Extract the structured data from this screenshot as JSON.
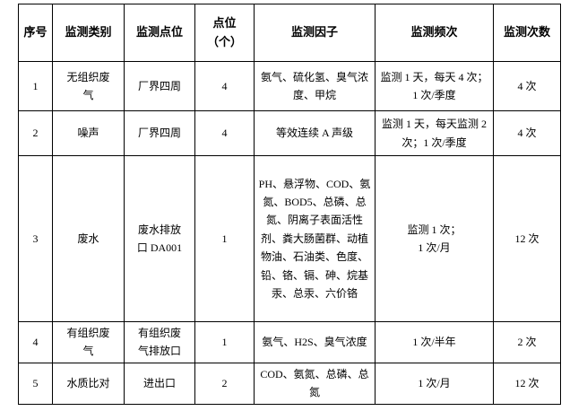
{
  "colors": {
    "background": "#ffffff",
    "border": "#000000",
    "text": "#000000"
  },
  "table": {
    "headers": [
      "序号",
      "监测类别",
      "监测点位",
      "点位\n（个）",
      "监测因子",
      "监测频次",
      "监测次数"
    ],
    "rows": [
      {
        "index": "1",
        "category": "无组织废\n气",
        "point": "厂界四周",
        "point_count": "4",
        "factors": "氨气、硫化氢、臭气浓度、甲烷",
        "frequency": "监测 1 天，每天 4 次；1 次/季度",
        "times": "4 次"
      },
      {
        "index": "2",
        "category": "噪声",
        "point": "厂界四周",
        "point_count": "4",
        "factors": "等效连续 A 声级",
        "frequency": "监测 1 天，每天监测 2 次；1 次/季度",
        "times": "4 次"
      },
      {
        "index": "3",
        "category": "废水",
        "point": "废水排放\n口 DA001",
        "point_count": "1",
        "factors": "PH、悬浮物、COD、氨氮、BOD5、总磷、总氮、阴离子表面活性剂、粪大肠菌群、动植物油、石油类、色度、铅、铬、镉、砷、烷基汞、总汞、六价铬",
        "frequency": "监测 1 次；\n1 次/月",
        "times": "12 次"
      },
      {
        "index": "4",
        "category": "有组织废\n气",
        "point": "有组织废\n气排放口",
        "point_count": "1",
        "factors": "氨气、H2S、臭气浓度",
        "frequency": "1 次/半年",
        "times": "2 次"
      },
      {
        "index": "5",
        "category": "水质比对",
        "point": "进出口",
        "point_count": "2",
        "factors": "COD、氨氮、总磷、总氮",
        "frequency": "1 次/月",
        "times": "12 次"
      }
    ]
  }
}
